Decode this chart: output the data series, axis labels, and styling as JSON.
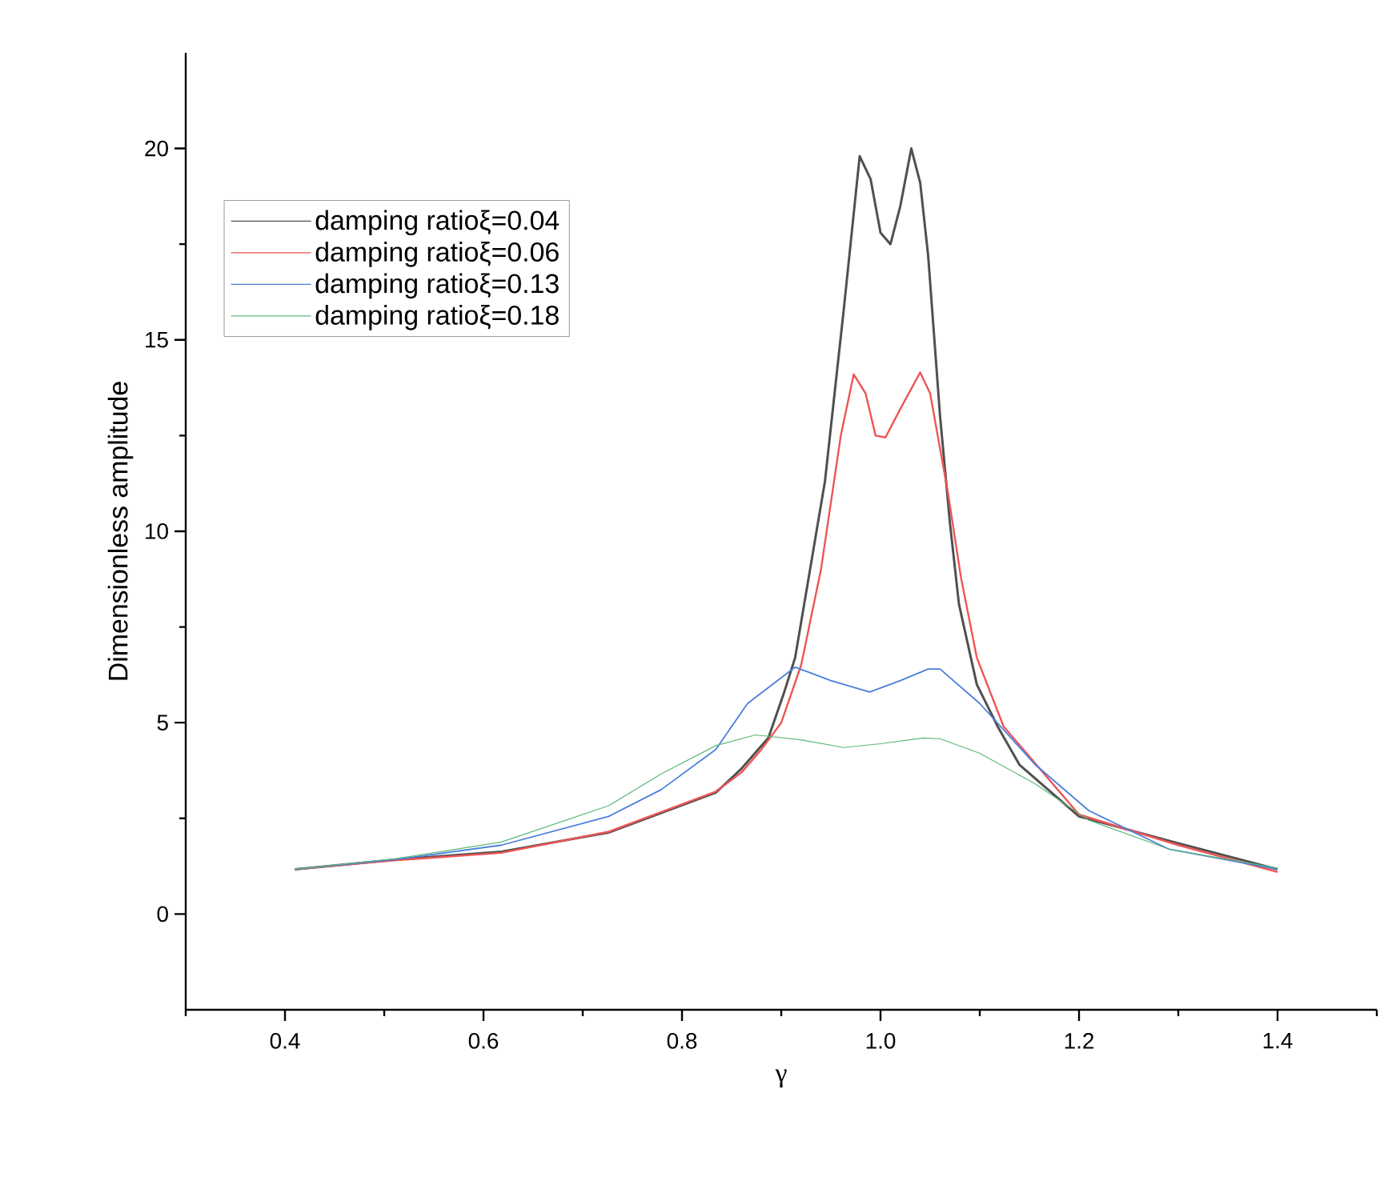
{
  "chart_data": {
    "type": "line",
    "xlabel": "γ",
    "ylabel": "Dimensionless amplitude",
    "xlim": [
      0.3,
      1.5
    ],
    "ylim": [
      -2.5,
      22.5
    ],
    "xticks": [
      {
        "value": 0.3,
        "label": null
      },
      0.4,
      {
        "value": 0.5,
        "label": null
      },
      0.6,
      {
        "value": 0.7,
        "label": null
      },
      0.8,
      {
        "value": 0.9,
        "label": null
      },
      {
        "value": 1.0,
        "label": "1.0"
      },
      {
        "value": 1.1,
        "label": null
      },
      1.2,
      {
        "value": 1.3,
        "label": null
      },
      1.4,
      {
        "value": 1.5,
        "label": null
      }
    ],
    "yticks": [
      0,
      {
        "value": 2.5,
        "label": null
      },
      5,
      {
        "value": 7.5,
        "label": null
      },
      10,
      {
        "value": 12.5,
        "label": null
      },
      15,
      {
        "value": 17.5,
        "label": null
      },
      20
    ],
    "grid": false,
    "legend": "top left",
    "marker": "none",
    "line_style": "solid",
    "series": [
      {
        "name": "damping ratioξ=0.04",
        "color": "#505050",
        "x": [
          0.41,
          0.51,
          0.618,
          0.726,
          0.834,
          0.86,
          0.887,
          0.903,
          0.914,
          0.944,
          0.963,
          0.979,
          0.99,
          1.0,
          1.01,
          1.02,
          1.031,
          1.04,
          1.048,
          1.06,
          1.07,
          1.079,
          1.097,
          1.118,
          1.14,
          1.2,
          1.3,
          1.4
        ],
        "values": [
          1.17,
          1.42,
          1.63,
          2.13,
          3.17,
          3.8,
          4.6,
          5.8,
          6.7,
          11.3,
          15.8,
          19.8,
          19.2,
          17.8,
          17.5,
          18.5,
          20.0,
          19.1,
          17.2,
          13.0,
          10.2,
          8.1,
          6.0,
          4.9,
          3.9,
          2.55,
          1.85,
          1.17
        ]
      },
      {
        "name": "damping ratioξ=0.06",
        "color": "#ee5555",
        "x": [
          0.41,
          0.51,
          0.618,
          0.726,
          0.834,
          0.86,
          0.88,
          0.9,
          0.92,
          0.94,
          0.96,
          0.973,
          0.985,
          0.995,
          1.005,
          1.02,
          1.04,
          1.05,
          1.068,
          1.081,
          1.097,
          1.124,
          1.2,
          1.3,
          1.4
        ],
        "values": [
          1.17,
          1.4,
          1.6,
          2.15,
          3.2,
          3.7,
          4.3,
          5.0,
          6.5,
          9.0,
          12.5,
          14.1,
          13.6,
          12.5,
          12.45,
          13.2,
          14.15,
          13.6,
          11.0,
          8.8,
          6.7,
          4.9,
          2.6,
          1.8,
          1.1
        ]
      },
      {
        "name": "damping ratioξ=0.13",
        "color": "#4a7fdc",
        "x": [
          0.41,
          0.51,
          0.618,
          0.726,
          0.779,
          0.834,
          0.866,
          0.914,
          0.95,
          0.989,
          1.02,
          1.048,
          1.06,
          1.1,
          1.156,
          1.21,
          1.29,
          1.4
        ],
        "values": [
          1.17,
          1.42,
          1.8,
          2.55,
          3.25,
          4.3,
          5.5,
          6.45,
          6.1,
          5.8,
          6.1,
          6.4,
          6.4,
          5.5,
          3.9,
          2.7,
          1.7,
          1.17
        ]
      },
      {
        "name": "damping ratioξ=0.18",
        "color": "#5cb87a",
        "x": [
          0.41,
          0.51,
          0.618,
          0.726,
          0.779,
          0.834,
          0.874,
          0.92,
          0.963,
          1.0,
          1.043,
          1.06,
          1.1,
          1.156,
          1.21,
          1.29,
          1.4
        ],
        "values": [
          1.17,
          1.44,
          1.88,
          2.83,
          3.66,
          4.4,
          4.68,
          4.55,
          4.35,
          4.45,
          4.6,
          4.58,
          4.2,
          3.4,
          2.45,
          1.7,
          1.2
        ]
      }
    ]
  }
}
